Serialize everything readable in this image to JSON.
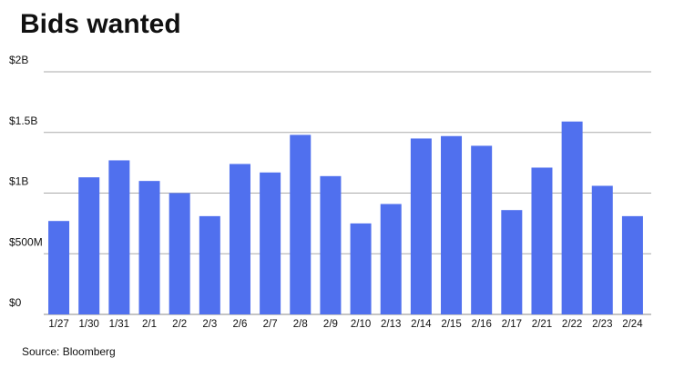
{
  "chart_data": {
    "type": "bar",
    "title": "Bids wanted",
    "source": "Source: Bloomberg",
    "categories": [
      "1/27",
      "1/30",
      "1/31",
      "2/1",
      "2/2",
      "2/3",
      "2/6",
      "2/7",
      "2/8",
      "2/9",
      "2/10",
      "2/13",
      "2/14",
      "2/15",
      "2/16",
      "2/17",
      "2/21",
      "2/22",
      "2/23",
      "2/24"
    ],
    "values": [
      770000000,
      1130000000,
      1270000000,
      1100000000,
      1000000000,
      810000000,
      1240000000,
      1170000000,
      1480000000,
      1140000000,
      750000000,
      910000000,
      1450000000,
      1470000000,
      1390000000,
      860000000,
      1210000000,
      1590000000,
      1060000000,
      810000000
    ],
    "color": "#5070ee",
    "ylim": [
      0,
      2000000000
    ],
    "yticks": [
      {
        "value": 0,
        "label": "$0"
      },
      {
        "value": 500000000,
        "label": "$500M"
      },
      {
        "value": 1000000000,
        "label": "$1B"
      },
      {
        "value": 1500000000,
        "label": "$1.5B"
      },
      {
        "value": 2000000000,
        "label": "$2B"
      }
    ],
    "grid": true
  }
}
